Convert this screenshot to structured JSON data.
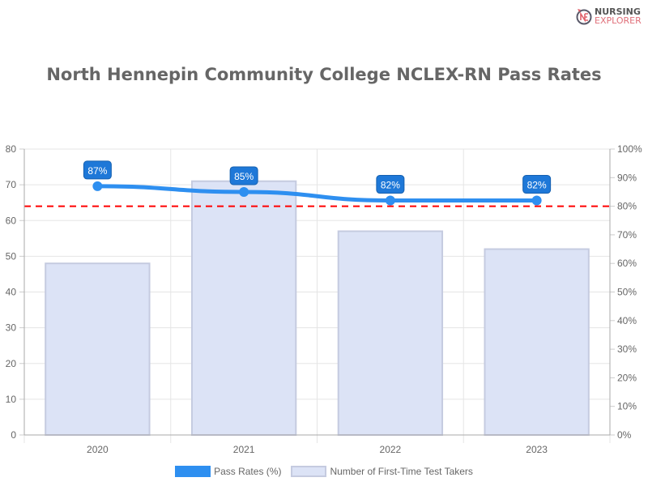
{
  "logo": {
    "line1": "NURSING",
    "line2": "EXPLORER"
  },
  "chart_data": {
    "type": "bar+line",
    "title": "North Hennepin Community College NCLEX-RN Pass Rates",
    "categories": [
      "2020",
      "2021",
      "2022",
      "2023"
    ],
    "series": [
      {
        "name": "Pass Rates (%)",
        "type": "line",
        "axis": "right",
        "values": [
          87,
          85,
          82,
          82
        ],
        "labels": [
          "87%",
          "85%",
          "82%",
          "82%"
        ],
        "color": "#2e8ff0"
      },
      {
        "name": "Number of First-Time Test Takers",
        "type": "bar",
        "axis": "left",
        "values": [
          48,
          71,
          57,
          52
        ],
        "color": "#dce3f6"
      }
    ],
    "left_axis": {
      "ylim": [
        0,
        80
      ],
      "ticks": [
        "0",
        "10",
        "20",
        "30",
        "40",
        "50",
        "60",
        "70",
        "80"
      ]
    },
    "right_axis": {
      "ylim": [
        0,
        100
      ],
      "ticks": [
        "0%",
        "10%",
        "20%",
        "30%",
        "40%",
        "50%",
        "60%",
        "70%",
        "80%",
        "90%",
        "100%"
      ]
    },
    "reference_line": {
      "value": 80,
      "axis": "right",
      "color": "#ff0000",
      "style": "dashed"
    },
    "grid": true,
    "legend_placement": "bottom"
  }
}
